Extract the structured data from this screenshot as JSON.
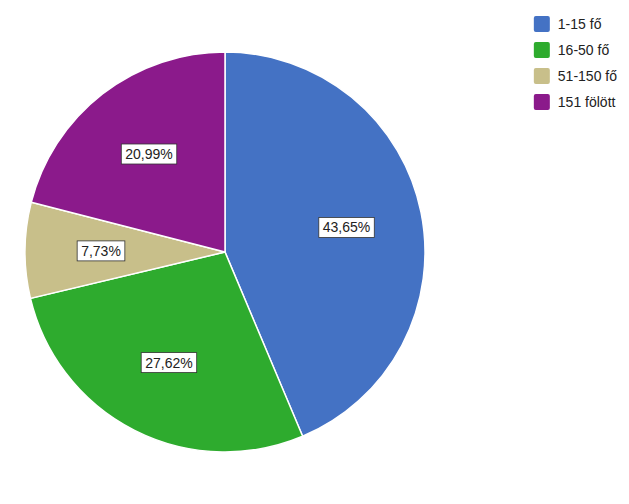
{
  "chart_data": {
    "type": "pie",
    "categories": [
      "1-15 fő",
      "16-50 fő",
      "51-150 fő",
      "151 fölött"
    ],
    "values": [
      43.65,
      27.62,
      7.73,
      20.99
    ],
    "value_labels": [
      "43,65%",
      "27,62%",
      "7,73%",
      "20,99%"
    ],
    "colors": [
      "#4472c4",
      "#2eab2e",
      "#c8bf8a",
      "#8b1a8b"
    ],
    "data_labels": true,
    "legend": "upper right"
  }
}
